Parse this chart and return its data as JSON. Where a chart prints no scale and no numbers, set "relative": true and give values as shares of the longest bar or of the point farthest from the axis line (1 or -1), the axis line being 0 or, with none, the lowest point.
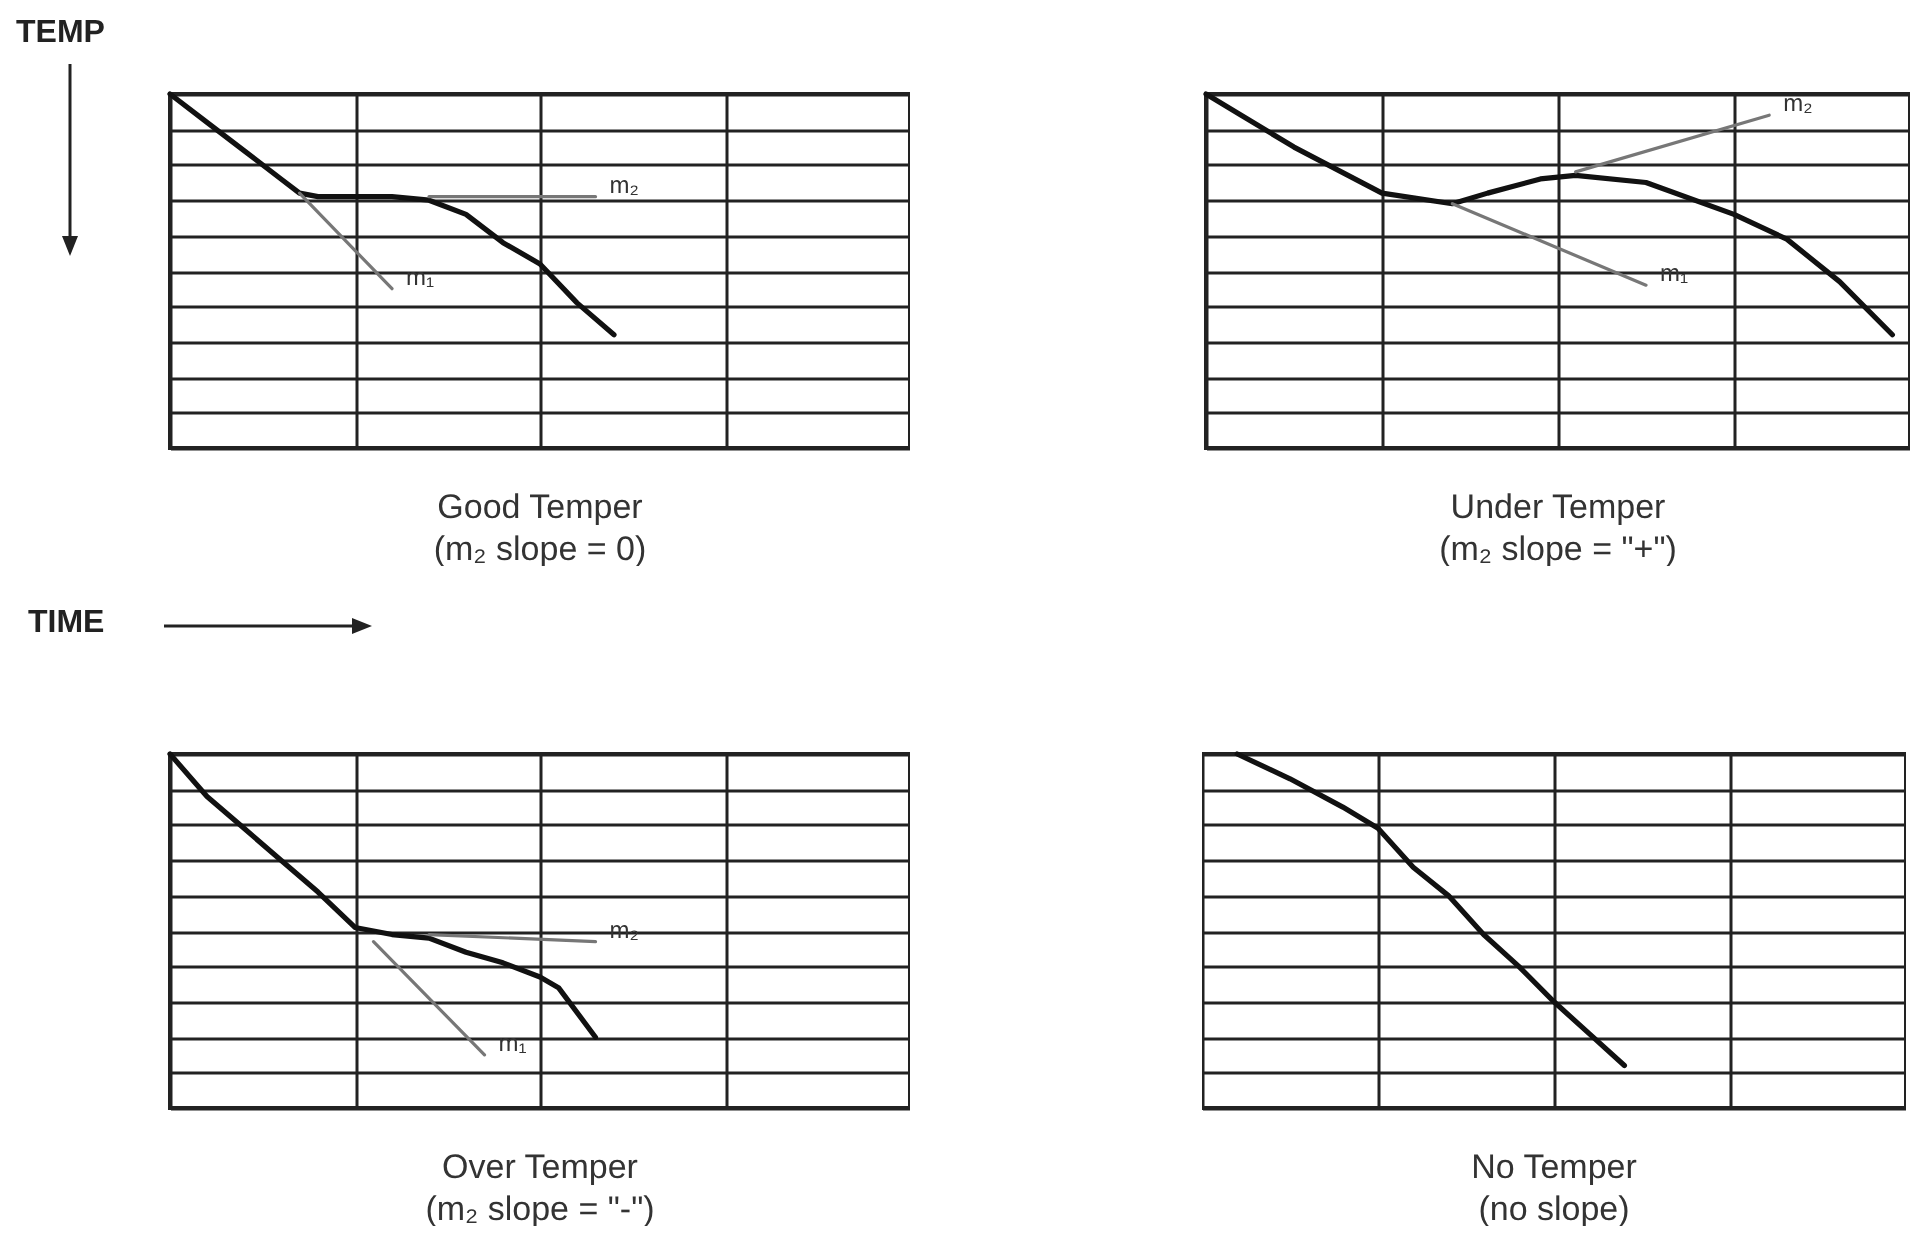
{
  "chart_data": [
    {
      "type": "line",
      "title": "Good Temper",
      "subtitle": "(m₂ slope = 0)",
      "ylabel": "TEMP",
      "xlabel": "TIME",
      "relative": true,
      "grid": true,
      "categories": [
        null,
        null,
        null,
        null,
        null,
        null,
        null,
        null,
        null,
        null,
        null,
        null,
        null,
        null,
        null,
        null,
        null,
        null,
        null,
        null,
        null,
        null,
        null,
        null,
        null,
        null,
        null,
        null,
        null,
        null,
        null,
        null,
        null,
        null,
        null,
        null,
        null,
        null,
        null,
        null,
        null
      ],
      "series": [
        {
          "color": "#111111",
          "values": [
            1.0,
            null,
            0.92,
            null,
            0.84,
            null,
            0.76,
            0.72,
            0.71,
            null,
            0.71,
            null,
            0.71,
            null,
            0.7,
            null,
            0.66,
            null,
            0.58,
            null,
            0.52,
            null,
            0.41,
            null,
            0.32,
            null,
            null,
            null,
            null,
            null,
            null,
            null,
            null,
            null,
            null,
            null,
            null,
            null,
            null,
            null,
            null
          ]
        },
        {
          "name": "m₁",
          "color": "#777777",
          "values": [
            null,
            null,
            null,
            null,
            null,
            null,
            null,
            0.72,
            null,
            null,
            null,
            null,
            0.45,
            null,
            null,
            null,
            null,
            null,
            null,
            null,
            null,
            null,
            null,
            null,
            null,
            null,
            null,
            null,
            null,
            null,
            null,
            null,
            null,
            null,
            null,
            null,
            null,
            null,
            null,
            null,
            null
          ]
        },
        {
          "name": "m₂",
          "color": "#777777",
          "values": [
            null,
            null,
            null,
            null,
            null,
            null,
            null,
            null,
            null,
            null,
            null,
            null,
            null,
            null,
            0.71,
            null,
            null,
            null,
            null,
            null,
            null,
            null,
            null,
            0.71,
            null,
            null,
            null,
            null,
            null,
            null,
            null,
            null,
            null,
            null,
            null,
            null,
            null,
            null,
            null,
            null,
            null
          ]
        }
      ]
    },
    {
      "type": "line",
      "title": "Under Temper",
      "subtitle": "(m₂ slope = \"+\")",
      "relative": true,
      "grid": true,
      "categories": [
        null,
        null,
        null,
        null,
        null,
        null,
        null,
        null,
        null,
        null,
        null,
        null,
        null,
        null,
        null,
        null,
        null,
        null,
        null,
        null,
        null,
        null,
        null,
        null,
        null,
        null,
        null,
        null,
        null,
        null,
        null,
        null,
        null,
        null,
        null,
        null,
        null,
        null,
        null,
        null,
        null
      ],
      "series": [
        {
          "color": "#111111",
          "values": [
            1.0,
            null,
            0.94,
            null,
            null,
            0.85,
            null,
            null,
            null,
            null,
            0.72,
            null,
            null,
            null,
            0.69,
            null,
            0.72,
            null,
            null,
            0.76,
            null,
            0.77,
            null,
            null,
            null,
            0.75,
            null,
            null,
            null,
            null,
            0.66,
            null,
            null,
            0.59,
            null,
            null,
            0.47,
            null,
            null,
            0.32,
            null
          ]
        },
        {
          "name": "m₁",
          "color": "#777777",
          "values": [
            null,
            null,
            null,
            null,
            null,
            null,
            null,
            null,
            null,
            null,
            null,
            null,
            null,
            null,
            0.69,
            null,
            null,
            null,
            null,
            null,
            null,
            null,
            null,
            null,
            null,
            0.46,
            null,
            null,
            null,
            null,
            null,
            null,
            null,
            null,
            null,
            null,
            null,
            null,
            null,
            null,
            null
          ]
        },
        {
          "name": "m₂",
          "color": "#777777",
          "values": [
            null,
            null,
            null,
            null,
            null,
            null,
            null,
            null,
            null,
            null,
            null,
            null,
            null,
            null,
            null,
            null,
            null,
            null,
            null,
            null,
            null,
            0.78,
            null,
            null,
            null,
            null,
            null,
            null,
            null,
            null,
            null,
            null,
            0.94,
            null,
            null,
            null,
            null,
            null,
            null,
            null,
            null
          ]
        }
      ]
    },
    {
      "type": "line",
      "title": "Over Temper",
      "subtitle": "(m₂ slope = \"-\")",
      "relative": true,
      "grid": true,
      "categories": [
        null,
        null,
        null,
        null,
        null,
        null,
        null,
        null,
        null,
        null,
        null,
        null,
        null,
        null,
        null,
        null,
        null,
        null,
        null,
        null,
        null,
        null,
        null,
        null,
        null,
        null,
        null,
        null,
        null,
        null,
        null,
        null,
        null,
        null,
        null,
        null,
        null,
        null,
        null,
        null,
        null
      ],
      "series": [
        {
          "color": "#111111",
          "values": [
            1.0,
            null,
            0.88,
            null,
            0.79,
            null,
            0.7,
            null,
            0.61,
            null,
            0.51,
            null,
            0.49,
            null,
            0.48,
            null,
            0.44,
            null,
            0.41,
            null,
            0.37,
            0.34,
            null,
            0.2,
            null,
            null,
            null,
            null,
            null,
            null,
            null,
            null,
            null,
            null,
            null,
            null,
            null,
            null,
            null,
            null,
            null
          ]
        },
        {
          "name": "m₁",
          "color": "#777777",
          "values": [
            null,
            null,
            null,
            null,
            null,
            null,
            null,
            null,
            null,
            null,
            null,
            0.47,
            null,
            null,
            null,
            null,
            null,
            0.15,
            null,
            null,
            null,
            null,
            null,
            null,
            null,
            null,
            null,
            null,
            null,
            null,
            null,
            null,
            null,
            null,
            null,
            null,
            null,
            null,
            null,
            null,
            null
          ]
        },
        {
          "name": "m₂",
          "color": "#777777",
          "values": [
            null,
            null,
            null,
            null,
            null,
            null,
            null,
            null,
            null,
            null,
            null,
            null,
            null,
            null,
            0.49,
            null,
            null,
            null,
            null,
            null,
            null,
            null,
            null,
            0.47,
            null,
            null,
            null,
            null,
            null,
            null,
            null,
            null,
            null,
            null,
            null,
            null,
            null,
            null,
            null,
            null,
            null
          ]
        }
      ]
    },
    {
      "type": "line",
      "title": "No Temper",
      "subtitle": "(no slope)",
      "relative": true,
      "grid": true,
      "categories": [
        null,
        null,
        null,
        null,
        null,
        null,
        null,
        null,
        null,
        null,
        null,
        null,
        null,
        null,
        null,
        null,
        null,
        null,
        null,
        null,
        null,
        null,
        null,
        null,
        null,
        null,
        null,
        null,
        null,
        null,
        null,
        null,
        null,
        null,
        null,
        null,
        null,
        null,
        null,
        null,
        null
      ],
      "series": [
        {
          "color": "#111111",
          "values": [
            null,
            null,
            1.0,
            null,
            null,
            0.93,
            null,
            null,
            0.85,
            null,
            0.79,
            null,
            0.68,
            null,
            0.6,
            null,
            0.49,
            null,
            0.4,
            null,
            0.3,
            null,
            0.21,
            null,
            0.12,
            null,
            null,
            null,
            null,
            null,
            null,
            null,
            null,
            null,
            null,
            null,
            null,
            null,
            null,
            null,
            null
          ]
        }
      ]
    }
  ]
}
